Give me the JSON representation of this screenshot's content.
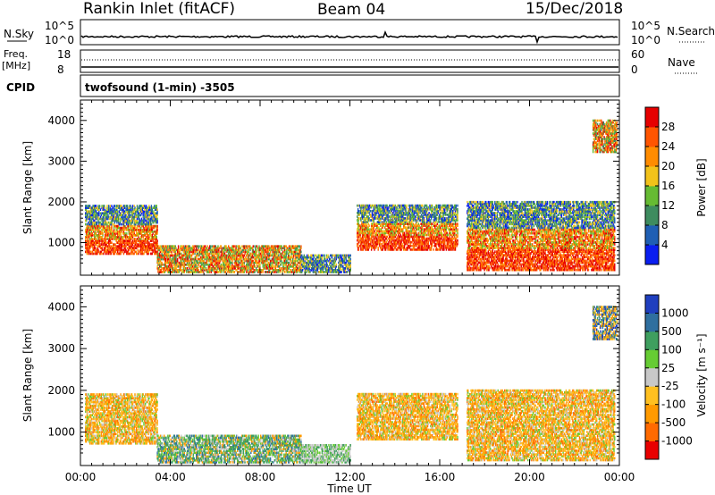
{
  "header": {
    "station": "Rankin Inlet (fitACF)",
    "beam": "Beam 04",
    "date": "15/Dec/2018"
  },
  "strip": {
    "nsky_label": "N.Sky",
    "nsky_ticks": [
      "10^5",
      "10^0"
    ],
    "nsearch_label": "N.Search",
    "nsearch_ticks": [
      "10^5",
      "10^0"
    ],
    "freq_label": "Freq.",
    "freq_unit": "[MHz]",
    "freq_ticks": [
      "18",
      "8"
    ],
    "nave_label": "Nave",
    "nave_ticks": [
      "60",
      "0"
    ],
    "cpid_label": "CPID",
    "cpid_text": "twofsound (1-min) -3505"
  },
  "chart_data": [
    {
      "type": "heatmap",
      "panel": "power",
      "xlabel": "",
      "ylabel": "Slant Range [km]",
      "x_tick_labels": [
        "00:00",
        "04:00",
        "08:00",
        "12:00",
        "16:00",
        "20:00",
        "00:00"
      ],
      "y_tick_labels": [
        "1000",
        "2000",
        "3000",
        "4000"
      ],
      "xlim_hours": [
        0,
        24
      ],
      "ylim_km": [
        200,
        4500
      ],
      "colorbar_label": "Power [dB]",
      "colorbar_ticks": [
        "4",
        "8",
        "12",
        "16",
        "20",
        "24",
        "28"
      ],
      "colorbar_range": [
        0,
        30
      ],
      "colors": [
        "#0a1ef0",
        "#1f5fb4",
        "#3e8c5f",
        "#66bb33",
        "#f2c21a",
        "#ff8c00",
        "#ff5500",
        "#e60000"
      ],
      "regions": [
        {
          "t": [
            0.2,
            3.4
          ],
          "r": [
            700,
            1900
          ],
          "level": "high"
        },
        {
          "t": [
            3.4,
            9.8
          ],
          "r": [
            250,
            900
          ],
          "level": "mid"
        },
        {
          "t": [
            9.8,
            12.0
          ],
          "r": [
            250,
            700
          ],
          "level": "low"
        },
        {
          "t": [
            12.3,
            16.8
          ],
          "r": [
            800,
            1900
          ],
          "level": "high"
        },
        {
          "t": [
            17.2,
            23.8
          ],
          "r": [
            300,
            2000
          ],
          "level": "high"
        },
        {
          "t": [
            22.8,
            23.9
          ],
          "r": [
            3200,
            4000
          ],
          "level": "mid"
        }
      ]
    },
    {
      "type": "heatmap",
      "panel": "velocity",
      "xlabel": "Time UT",
      "ylabel": "Slant Range [km]",
      "x_tick_labels": [
        "00:00",
        "04:00",
        "08:00",
        "12:00",
        "16:00",
        "20:00",
        "00:00"
      ],
      "y_tick_labels": [
        "1000",
        "2000",
        "3000",
        "4000"
      ],
      "xlim_hours": [
        0,
        24
      ],
      "ylim_km": [
        200,
        4500
      ],
      "colorbar_label": "Velocity [m s⁻¹]",
      "colorbar_ticks": [
        "1000",
        "500",
        "100",
        "25",
        "-25",
        "-100",
        "-500",
        "-1000"
      ],
      "colors": [
        "#1f3fbf",
        "#2f6f9f",
        "#3f9f5f",
        "#66cc33",
        "#c8c8c8",
        "#ffc020",
        "#ff9a00",
        "#ff6a00",
        "#e80000"
      ],
      "regions": [
        {
          "t": [
            0.2,
            3.4
          ],
          "r": [
            700,
            1900
          ],
          "level": "toward"
        },
        {
          "t": [
            3.4,
            9.8
          ],
          "r": [
            250,
            900
          ],
          "level": "away"
        },
        {
          "t": [
            9.8,
            12.0
          ],
          "r": [
            250,
            700
          ],
          "level": "ground"
        },
        {
          "t": [
            12.3,
            16.8
          ],
          "r": [
            800,
            1900
          ],
          "level": "toward"
        },
        {
          "t": [
            17.2,
            23.8
          ],
          "r": [
            300,
            2000
          ],
          "level": "toward"
        },
        {
          "t": [
            22.8,
            23.9
          ],
          "r": [
            3200,
            4000
          ],
          "level": "mixed"
        }
      ]
    }
  ]
}
